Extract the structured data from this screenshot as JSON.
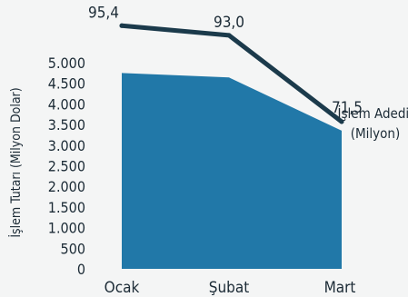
{
  "chart_data": {
    "type": "area",
    "categories": [
      "Ocak",
      "Şubat",
      "Mart"
    ],
    "series": [
      {
        "name": "",
        "type": "area",
        "axis": "left",
        "values": [
          4750,
          4640,
          3350
        ],
        "color": "#2178a8"
      },
      {
        "name": "İşlem Adedi (Milyon)",
        "name_lines": [
          "İşlem Adedi",
          "(Milyon)"
        ],
        "type": "line",
        "axis": "right",
        "values": [
          95.4,
          93.0,
          71.5
        ],
        "labels": [
          "95,4",
          "93,0",
          "71,5"
        ],
        "color": "#1b3a4b"
      }
    ],
    "ylabel": "İşlem Tutarı (Milyon Dolar)",
    "ylim": [
      0,
      5000
    ],
    "yticks": [
      0,
      500,
      1000,
      1500,
      2000,
      2500,
      3000,
      3500,
      4000,
      4500,
      5000
    ],
    "ytick_labels": [
      "0",
      "500",
      "1.000",
      "1.500",
      "2.000",
      "2.500",
      "3.000",
      "3.500",
      "4.000",
      "4.500",
      "5.000"
    ],
    "grid": false,
    "legend": "none"
  }
}
